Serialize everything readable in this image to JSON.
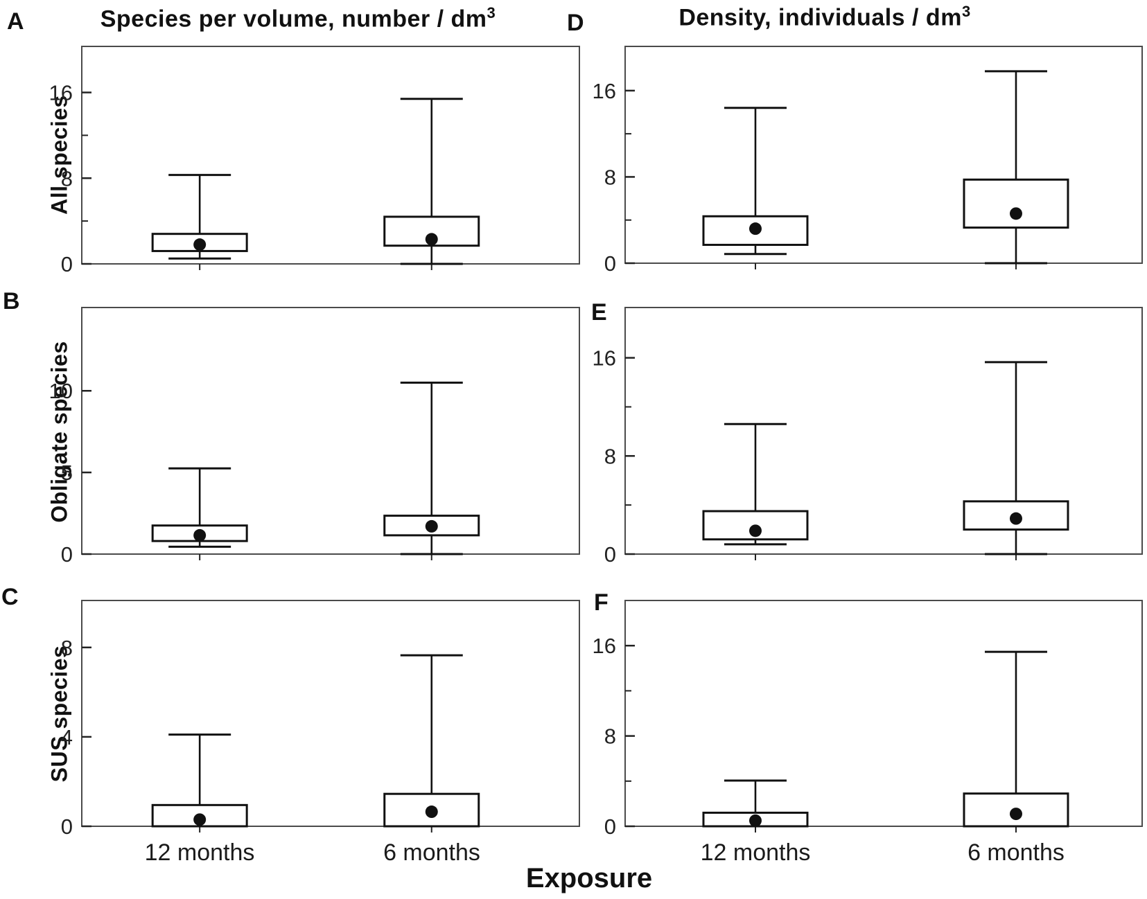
{
  "figure": {
    "x_axis_label": "Exposure",
    "categories": [
      "12 months",
      "6 months"
    ],
    "left_column_title": {
      "text": "Species per volume, number / dm",
      "sup": "3"
    },
    "right_column_title": {
      "text": "Density, individuals / dm",
      "sup": "3"
    },
    "colors": {
      "line": "#111111",
      "panel_border": "#4a4a4a",
      "background": "#ffffff",
      "tick_label": "#222222"
    }
  },
  "chart_data": [
    {
      "type": "box",
      "panel_letter": "A",
      "column_title": "Species per volume, number / dm3",
      "ylabel": "All species",
      "y_ticks_major": [
        0,
        8,
        16
      ],
      "y_ticks_minor": [
        4,
        12
      ],
      "ylim": [
        0,
        20.3
      ],
      "grid": false,
      "boxes": [
        {
          "category": "12 months",
          "whisker_low": 0.5,
          "q1": 1.2,
          "mean": 1.8,
          "q3": 2.8,
          "whisker_high": 8.3
        },
        {
          "category": "6 months",
          "whisker_low": 0,
          "q1": 1.7,
          "mean": 2.3,
          "q3": 4.4,
          "whisker_high": 15.4
        }
      ]
    },
    {
      "type": "box",
      "panel_letter": "B",
      "column_title": "Species per volume, number / dm3",
      "ylabel": "Obligate species",
      "y_ticks_major": [
        0,
        5,
        10
      ],
      "y_ticks_minor": [],
      "ylim": [
        0,
        15.1
      ],
      "grid": false,
      "boxes": [
        {
          "category": "12 months",
          "whisker_low": 0.45,
          "q1": 0.8,
          "mean": 1.15,
          "q3": 1.75,
          "whisker_high": 5.25
        },
        {
          "category": "6 months",
          "whisker_low": 0,
          "q1": 1.15,
          "mean": 1.7,
          "q3": 2.35,
          "whisker_high": 10.5
        }
      ]
    },
    {
      "type": "box",
      "panel_letter": "C",
      "column_title": "Species per volume, number / dm3",
      "ylabel": "SUS species",
      "y_ticks_major": [
        0,
        4,
        8
      ],
      "y_ticks_minor": [],
      "ylim": [
        0,
        10.1
      ],
      "grid": false,
      "boxes": [
        {
          "category": "12 months",
          "whisker_low": null,
          "q1": 0,
          "mean": 0.3,
          "q3": 0.95,
          "whisker_high": 4.1
        },
        {
          "category": "6 months",
          "whisker_low": null,
          "q1": 0,
          "mean": 0.65,
          "q3": 1.45,
          "whisker_high": 7.65
        }
      ]
    },
    {
      "type": "box",
      "panel_letter": "D",
      "column_title": "Density, individuals / dm3",
      "ylabel": "All species",
      "y_ticks_major": [
        0,
        8,
        16
      ],
      "y_ticks_minor": [
        4,
        12
      ],
      "ylim": [
        0,
        20.1
      ],
      "grid": false,
      "boxes": [
        {
          "category": "12 months",
          "whisker_low": 0.85,
          "q1": 1.7,
          "mean": 3.2,
          "q3": 4.35,
          "whisker_high": 14.4
        },
        {
          "category": "6 months",
          "whisker_low": 0,
          "q1": 3.3,
          "mean": 4.6,
          "q3": 7.75,
          "whisker_high": 17.8
        }
      ]
    },
    {
      "type": "box",
      "panel_letter": "E",
      "column_title": "Density, individuals / dm3",
      "ylabel": "Obligate species",
      "y_ticks_major": [
        0,
        8,
        16
      ],
      "y_ticks_minor": [
        4,
        12
      ],
      "ylim": [
        0,
        20.1
      ],
      "grid": false,
      "boxes": [
        {
          "category": "12 months",
          "whisker_low": 0.8,
          "q1": 1.2,
          "mean": 1.9,
          "q3": 3.5,
          "whisker_high": 10.6
        },
        {
          "category": "6 months",
          "whisker_low": 0,
          "q1": 2.0,
          "mean": 2.9,
          "q3": 4.3,
          "whisker_high": 15.65
        }
      ]
    },
    {
      "type": "box",
      "panel_letter": "F",
      "column_title": "Density, individuals / dm3",
      "ylabel": "SUS species",
      "y_ticks_major": [
        0,
        8,
        16
      ],
      "y_ticks_minor": [
        4,
        12
      ],
      "ylim": [
        0,
        20.0
      ],
      "grid": false,
      "boxes": [
        {
          "category": "12 months",
          "whisker_low": null,
          "q1": 0,
          "mean": 0.5,
          "q3": 1.2,
          "whisker_high": 4.05
        },
        {
          "category": "6 months",
          "whisker_low": null,
          "q1": 0,
          "mean": 1.1,
          "q3": 2.9,
          "whisker_high": 15.45
        }
      ]
    }
  ]
}
